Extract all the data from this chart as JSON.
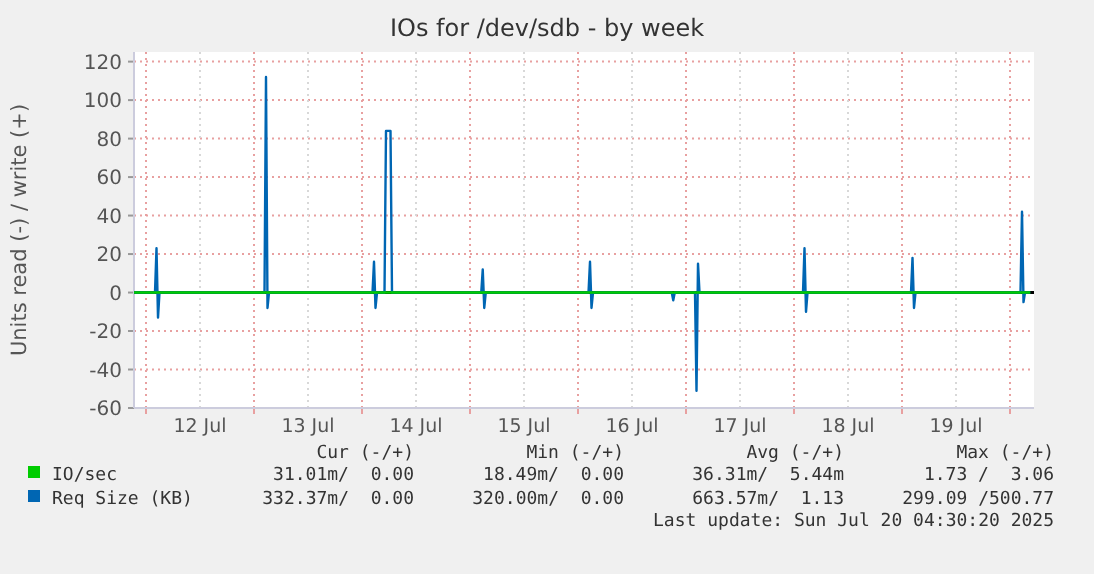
{
  "chart_data": {
    "type": "line",
    "title": "IOs for /dev/sdb - by week",
    "ylabel": "Units read (-) / write (+)",
    "xlim": [
      "2025-07-11T21:20",
      "2025-07-20T05:20"
    ],
    "xticks": [
      {
        "value": "2025-07-12T00:00",
        "label": null
      },
      {
        "value": "2025-07-12T12:00",
        "label": "12 Jul"
      },
      {
        "value": "2025-07-13T00:00",
        "label": null
      },
      {
        "value": "2025-07-13T12:00",
        "label": "13 Jul"
      },
      {
        "value": "2025-07-14T00:00",
        "label": null
      },
      {
        "value": "2025-07-14T12:00",
        "label": "14 Jul"
      },
      {
        "value": "2025-07-15T00:00",
        "label": null
      },
      {
        "value": "2025-07-15T12:00",
        "label": "15 Jul"
      },
      {
        "value": "2025-07-16T00:00",
        "label": null
      },
      {
        "value": "2025-07-16T12:00",
        "label": "16 Jul"
      },
      {
        "value": "2025-07-17T00:00",
        "label": null
      },
      {
        "value": "2025-07-17T12:00",
        "label": "17 Jul"
      },
      {
        "value": "2025-07-18T00:00",
        "label": null
      },
      {
        "value": "2025-07-18T12:00",
        "label": "18 Jul"
      },
      {
        "value": "2025-07-19T00:00",
        "label": null
      },
      {
        "value": "2025-07-19T12:00",
        "label": "19 Jul"
      },
      {
        "value": "2025-07-20T00:00",
        "label": null
      }
    ],
    "ylim": [
      -60,
      125
    ],
    "yticks": [
      -60,
      -40,
      -20,
      0,
      20,
      40,
      60,
      80,
      100,
      120
    ],
    "grid": true,
    "legend": "bottom",
    "line_style": "solid",
    "marker": "none",
    "ref_lines": [
      {
        "axis": "y",
        "value": 0,
        "color": "#000000"
      }
    ],
    "series": [
      {
        "name": "IO/sec",
        "color": "#00cc00",
        "x": [
          "2025-07-11T21:20",
          "2025-07-14T00:00",
          "2025-07-17T00:00",
          "2025-07-20T04:30"
        ],
        "values": [
          0,
          0,
          0,
          0
        ]
      },
      {
        "name": "Req Size (KB)",
        "color": "#0066b3",
        "x": [
          "2025-07-11T21:20",
          "2025-07-12T02:00",
          "2025-07-12T02:20",
          "2025-07-12T02:40",
          "2025-07-12T03:00",
          "2025-07-13T02:20",
          "2025-07-13T02:40",
          "2025-07-13T03:00",
          "2025-07-13T03:20",
          "2025-07-14T02:20",
          "2025-07-14T02:40",
          "2025-07-14T03:00",
          "2025-07-14T03:20",
          "2025-07-14T05:00",
          "2025-07-14T05:20",
          "2025-07-14T06:20",
          "2025-07-14T06:40",
          "2025-07-15T02:30",
          "2025-07-15T02:50",
          "2025-07-15T03:10",
          "2025-07-15T03:30",
          "2025-07-16T02:20",
          "2025-07-16T02:40",
          "2025-07-16T03:00",
          "2025-07-16T03:20",
          "2025-07-16T20:50",
          "2025-07-16T21:10",
          "2025-07-16T21:30",
          "2025-07-17T02:00",
          "2025-07-17T02:20",
          "2025-07-17T02:40",
          "2025-07-17T03:00",
          "2025-07-18T02:00",
          "2025-07-18T02:20",
          "2025-07-18T02:40",
          "2025-07-18T03:00",
          "2025-07-19T02:00",
          "2025-07-19T02:20",
          "2025-07-19T02:40",
          "2025-07-19T03:00",
          "2025-07-20T02:20",
          "2025-07-20T02:40",
          "2025-07-20T03:00",
          "2025-07-20T03:20",
          "2025-07-20T04:30"
        ],
        "values": [
          0,
          0,
          23,
          -13,
          0,
          0,
          112,
          -8,
          0,
          0,
          16,
          -8,
          0,
          0,
          84,
          84,
          0,
          0,
          12,
          -8,
          0,
          0,
          16,
          -8,
          0,
          0,
          -4,
          0,
          0,
          -51,
          15,
          0,
          0,
          23,
          -10,
          0,
          0,
          18,
          -8,
          0,
          0,
          42,
          -5,
          0,
          0
        ]
      }
    ],
    "annotations": [
      "Cur (-/+)",
      "Min (-/+)",
      "Avg (-/+)",
      "Max (-/+)",
      "31.01m/  0.00",
      "18.49m/  0.00",
      "36.31m/  5.44m",
      "1.73 /  3.06",
      "332.37m/  0.00",
      "320.00m/  0.00",
      "663.57m/  1.13",
      "299.09 /500.77",
      "Last update: Sun Jul 20 04:30:20 2025"
    ]
  }
}
